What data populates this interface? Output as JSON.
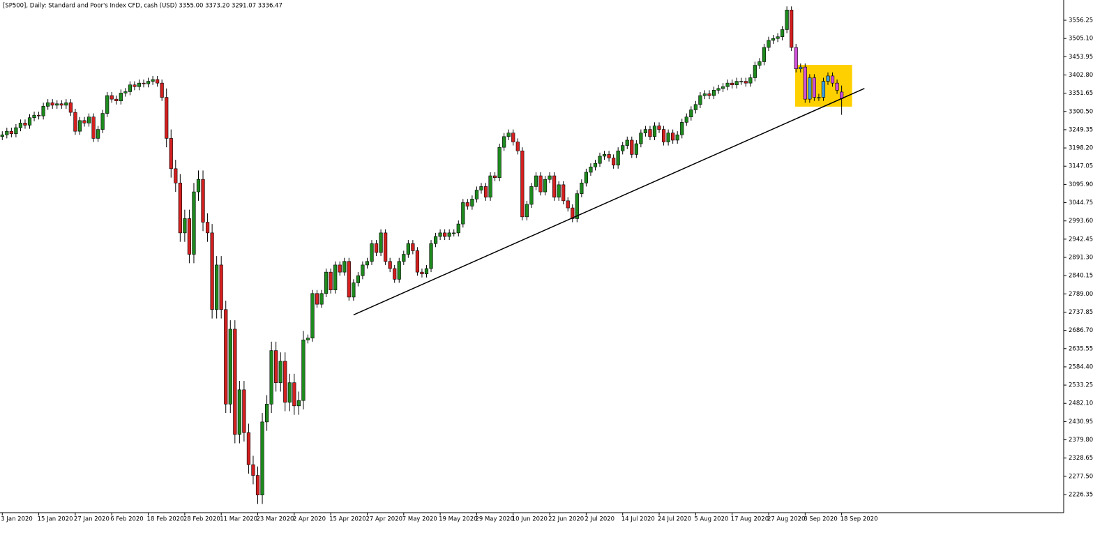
{
  "chart_data": {
    "type": "candlestick",
    "title": "[SP500], Daily:  Standard and Poor's Index CFD, cash (USD)  3355.00 3373.20 3291.07 3336.47",
    "categories": [
      "3 Jan 2020",
      null,
      null,
      null,
      null,
      null,
      null,
      null,
      "15 Jan 2020",
      null,
      null,
      null,
      null,
      null,
      null,
      null,
      "27 Jan 2020",
      null,
      null,
      null,
      null,
      null,
      null,
      null,
      "6 Feb 2020",
      null,
      null,
      null,
      null,
      null,
      null,
      null,
      "18 Feb 2020",
      null,
      null,
      null,
      null,
      null,
      null,
      null,
      "28 Feb 2020",
      null,
      null,
      null,
      null,
      null,
      null,
      null,
      "11 Mar 2020",
      null,
      null,
      null,
      null,
      null,
      null,
      null,
      "23 Mar 2020",
      null,
      null,
      null,
      null,
      null,
      null,
      null,
      "2 Apr 2020",
      null,
      null,
      null,
      null,
      null,
      null,
      null,
      "15 Apr 2020",
      null,
      null,
      null,
      null,
      null,
      null,
      null,
      "27 Apr 2020",
      null,
      null,
      null,
      null,
      null,
      null,
      null,
      "7 May 2020",
      null,
      null,
      null,
      null,
      null,
      null,
      null,
      "19 May 2020",
      null,
      null,
      null,
      null,
      null,
      null,
      null,
      "29 May 2020",
      null,
      null,
      null,
      null,
      null,
      null,
      null,
      "10 Jun 2020",
      null,
      null,
      null,
      null,
      null,
      null,
      null,
      "22 Jun 2020",
      null,
      null,
      null,
      null,
      null,
      null,
      null,
      "2 Jul 2020",
      null,
      null,
      null,
      null,
      null,
      null,
      null,
      "14 Jul 2020",
      null,
      null,
      null,
      null,
      null,
      null,
      null,
      "24 Jul 2020",
      null,
      null,
      null,
      null,
      null,
      null,
      null,
      "5 Aug 2020",
      null,
      null,
      null,
      null,
      null,
      null,
      null,
      "17 Aug 2020",
      null,
      null,
      null,
      null,
      null,
      null,
      null,
      "27 Aug 2020",
      null,
      null,
      null,
      null,
      null,
      null,
      null,
      "8 Sep 2020",
      null,
      null,
      null,
      null,
      null,
      null,
      null,
      "18 Sep 2020"
    ],
    "open": [
      3230,
      3235,
      3245,
      3238,
      3255,
      3268,
      3262,
      3283,
      3290,
      3288,
      3315,
      3325,
      3318,
      3322,
      3318,
      3325,
      3298,
      3245,
      3275,
      3268,
      3285,
      3225,
      3250,
      3295,
      3345,
      3335,
      3330,
      3352,
      3356,
      3375,
      3370,
      3380,
      3378,
      3385,
      3390,
      3380,
      3340,
      3225,
      3140,
      3100,
      2960,
      3000,
      2900,
      3075,
      3110,
      2990,
      2960,
      2745,
      2870,
      2745,
      2480,
      2690,
      2395,
      2520,
      2400,
      2310,
      2280,
      2225,
      2430,
      2480,
      2630,
      2540,
      2600,
      2485,
      2540,
      2475,
      2490,
      2660,
      2665,
      2790,
      2760,
      2790,
      2850,
      2800,
      2870,
      2850,
      2880,
      2780,
      2820,
      2840,
      2870,
      2880,
      2930,
      2905,
      2960,
      2880,
      2860,
      2830,
      2880,
      2900,
      2930,
      2910,
      2850,
      2845,
      2860,
      2930,
      2950,
      2960,
      2950,
      2960,
      2960,
      2985,
      3045,
      3035,
      3055,
      3080,
      3090,
      3060,
      3120,
      3115,
      3200,
      3230,
      3240,
      3215,
      3190,
      3005,
      3040,
      3090,
      3120,
      3075,
      3110,
      3120,
      3060,
      3095,
      3050,
      3030,
      3000,
      3070,
      3100,
      3130,
      3145,
      3155,
      3175,
      3180,
      3170,
      3150,
      3190,
      3205,
      3220,
      3180,
      3210,
      3240,
      3250,
      3230,
      3260,
      3250,
      3215,
      3240,
      3220,
      3235,
      3270,
      3285,
      3305,
      3320,
      3345,
      3350,
      3345,
      3360,
      3365,
      3370,
      3380,
      3375,
      3385,
      3385,
      3380,
      3395,
      3430,
      3440,
      3480,
      3500,
      3505,
      3510,
      3530,
      3585,
      3480,
      3420,
      3425,
      3335,
      3395,
      3340,
      3340,
      3385,
      3400,
      3380,
      3355
    ],
    "high": [
      3245,
      3255,
      3255,
      3265,
      3278,
      3278,
      3293,
      3300,
      3300,
      3325,
      3335,
      3335,
      3332,
      3332,
      3335,
      3335,
      3308,
      3285,
      3285,
      3295,
      3295,
      3260,
      3305,
      3355,
      3355,
      3345,
      3362,
      3366,
      3385,
      3385,
      3390,
      3390,
      3395,
      3400,
      3400,
      3390,
      3365,
      3250,
      3165,
      3125,
      3025,
      3025,
      3100,
      3135,
      3135,
      3015,
      2985,
      2895,
      2895,
      2770,
      2715,
      2715,
      2545,
      2545,
      2425,
      2335,
      2305,
      2455,
      2505,
      2655,
      2655,
      2625,
      2625,
      2565,
      2565,
      2515,
      2685,
      2675,
      2800,
      2800,
      2800,
      2860,
      2860,
      2880,
      2880,
      2890,
      2890,
      2830,
      2850,
      2880,
      2890,
      2940,
      2940,
      2970,
      2970,
      2890,
      2870,
      2890,
      2910,
      2940,
      2940,
      2920,
      2860,
      2870,
      2940,
      2960,
      2970,
      2970,
      2970,
      2970,
      2995,
      3055,
      3055,
      3065,
      3090,
      3100,
      3100,
      3130,
      3130,
      3210,
      3240,
      3250,
      3250,
      3225,
      3200,
      3050,
      3100,
      3130,
      3130,
      3120,
      3130,
      3130,
      3105,
      3105,
      3060,
      3040,
      3080,
      3110,
      3140,
      3155,
      3165,
      3185,
      3190,
      3190,
      3180,
      3200,
      3215,
      3230,
      3230,
      3220,
      3250,
      3260,
      3260,
      3270,
      3270,
      3260,
      3250,
      3250,
      3245,
      3280,
      3295,
      3315,
      3330,
      3355,
      3360,
      3360,
      3370,
      3375,
      3380,
      3390,
      3390,
      3395,
      3395,
      3395,
      3405,
      3440,
      3450,
      3490,
      3510,
      3515,
      3520,
      3540,
      3595,
      3595,
      3490,
      3435,
      3435,
      3405,
      3405,
      3350,
      3395,
      3410,
      3410,
      3390,
      3373.2
    ],
    "low": [
      3220,
      3225,
      3228,
      3228,
      3245,
      3252,
      3252,
      3273,
      3278,
      3278,
      3305,
      3308,
      3308,
      3308,
      3308,
      3288,
      3235,
      3235,
      3258,
      3258,
      3215,
      3215,
      3240,
      3285,
      3325,
      3320,
      3320,
      3342,
      3346,
      3360,
      3360,
      3368,
      3368,
      3375,
      3370,
      3330,
      3200,
      3115,
      3075,
      2935,
      2935,
      2875,
      2875,
      3050,
      2965,
      2935,
      2720,
      2720,
      2720,
      2455,
      2455,
      2370,
      2370,
      2375,
      2285,
      2255,
      2200,
      2200,
      2405,
      2455,
      2515,
      2515,
      2460,
      2460,
      2450,
      2450,
      2465,
      2650,
      2655,
      2750,
      2750,
      2780,
      2790,
      2790,
      2840,
      2840,
      2770,
      2770,
      2810,
      2830,
      2860,
      2870,
      2895,
      2895,
      2870,
      2850,
      2820,
      2820,
      2870,
      2890,
      2900,
      2840,
      2835,
      2835,
      2850,
      2920,
      2940,
      2940,
      2940,
      2950,
      2950,
      2975,
      3025,
      3025,
      3045,
      3070,
      3050,
      3050,
      3105,
      3105,
      3190,
      3220,
      3205,
      3180,
      2995,
      2995,
      3030,
      3080,
      3065,
      3065,
      3100,
      3050,
      3050,
      3040,
      3020,
      2990,
      2990,
      3060,
      3090,
      3120,
      3135,
      3145,
      3165,
      3160,
      3140,
      3140,
      3180,
      3195,
      3170,
      3170,
      3200,
      3230,
      3220,
      3220,
      3240,
      3205,
      3205,
      3210,
      3210,
      3225,
      3260,
      3275,
      3295,
      3310,
      3335,
      3335,
      3335,
      3350,
      3355,
      3360,
      3365,
      3365,
      3375,
      3370,
      3370,
      3385,
      3420,
      3430,
      3470,
      3490,
      3495,
      3500,
      3520,
      3470,
      3410,
      3410,
      3325,
      3325,
      3330,
      3330,
      3330,
      3375,
      3370,
      3350,
      3291.07
    ],
    "close": [
      3235,
      3245,
      3238,
      3255,
      3268,
      3262,
      3283,
      3290,
      3288,
      3315,
      3325,
      3318,
      3322,
      3318,
      3325,
      3298,
      3245,
      3275,
      3268,
      3285,
      3225,
      3250,
      3295,
      3345,
      3335,
      3330,
      3352,
      3356,
      3375,
      3370,
      3380,
      3378,
      3385,
      3390,
      3380,
      3340,
      3225,
      3140,
      3100,
      2960,
      3000,
      2900,
      3075,
      3110,
      2990,
      2960,
      2745,
      2870,
      2745,
      2480,
      2690,
      2395,
      2520,
      2400,
      2310,
      2280,
      2225,
      2430,
      2480,
      2630,
      2540,
      2600,
      2485,
      2540,
      2475,
      2490,
      2660,
      2665,
      2790,
      2760,
      2790,
      2850,
      2800,
      2870,
      2850,
      2880,
      2780,
      2820,
      2840,
      2870,
      2880,
      2930,
      2905,
      2960,
      2880,
      2860,
      2830,
      2880,
      2900,
      2930,
      2910,
      2850,
      2845,
      2860,
      2930,
      2950,
      2960,
      2950,
      2960,
      2960,
      2985,
      3045,
      3035,
      3055,
      3080,
      3090,
      3060,
      3120,
      3115,
      3200,
      3230,
      3240,
      3215,
      3190,
      3005,
      3040,
      3090,
      3120,
      3075,
      3110,
      3120,
      3060,
      3095,
      3050,
      3030,
      3000,
      3070,
      3100,
      3130,
      3145,
      3155,
      3175,
      3180,
      3170,
      3150,
      3190,
      3205,
      3220,
      3180,
      3210,
      3240,
      3250,
      3230,
      3260,
      3250,
      3215,
      3240,
      3220,
      3235,
      3270,
      3285,
      3305,
      3320,
      3345,
      3350,
      3345,
      3360,
      3365,
      3370,
      3380,
      3375,
      3385,
      3385,
      3380,
      3395,
      3430,
      3440,
      3480,
      3500,
      3505,
      3510,
      3530,
      3585,
      3480,
      3420,
      3425,
      3335,
      3395,
      3340,
      3340,
      3385,
      3400,
      3380,
      3360,
      3336.47
    ],
    "up_color": "#1e8a1e",
    "down_color": "#d42020",
    "ylim": [
      2175.5,
      3613
    ],
    "yticks": [
      3556.25,
      {
        "value": 3505.1,
        "label": "3505.10"
      },
      3453.95,
      {
        "value": 3402.8,
        "label": "3402.80"
      },
      3351.65,
      {
        "value": 3300.5,
        "label": "3300.50"
      },
      3249.35,
      {
        "value": 3198.2,
        "label": "3198.20"
      },
      3147.05,
      {
        "value": 3095.9,
        "label": "3095.90"
      },
      3044.75,
      {
        "value": 2993.6,
        "label": "2993.60"
      },
      2942.45,
      {
        "value": 2891.3,
        "label": "2891.30"
      },
      2840.15,
      {
        "value": 2789,
        "label": "2789.00"
      },
      2737.85,
      {
        "value": 2686.7,
        "label": "2686.70"
      },
      2635.55,
      {
        "value": 2584.4,
        "label": "2584.40"
      },
      2533.25,
      {
        "value": 2482.1,
        "label": "2482.10"
      },
      2430.95,
      {
        "value": 2379.8,
        "label": "2379.80"
      },
      2328.65,
      {
        "value": 2277.5,
        "label": "2277.50"
      },
      2226.35
    ],
    "highlight": {
      "start": 173.8,
      "end": 186.3,
      "low": 3314,
      "high": 3431,
      "color": "#ffd000",
      "up_color": "#40a0e0",
      "down_color": "#d050d8"
    },
    "trendline": {
      "x": [
        77,
        189
      ],
      "y": [
        2730,
        3365
      ],
      "color": "#000000"
    }
  }
}
